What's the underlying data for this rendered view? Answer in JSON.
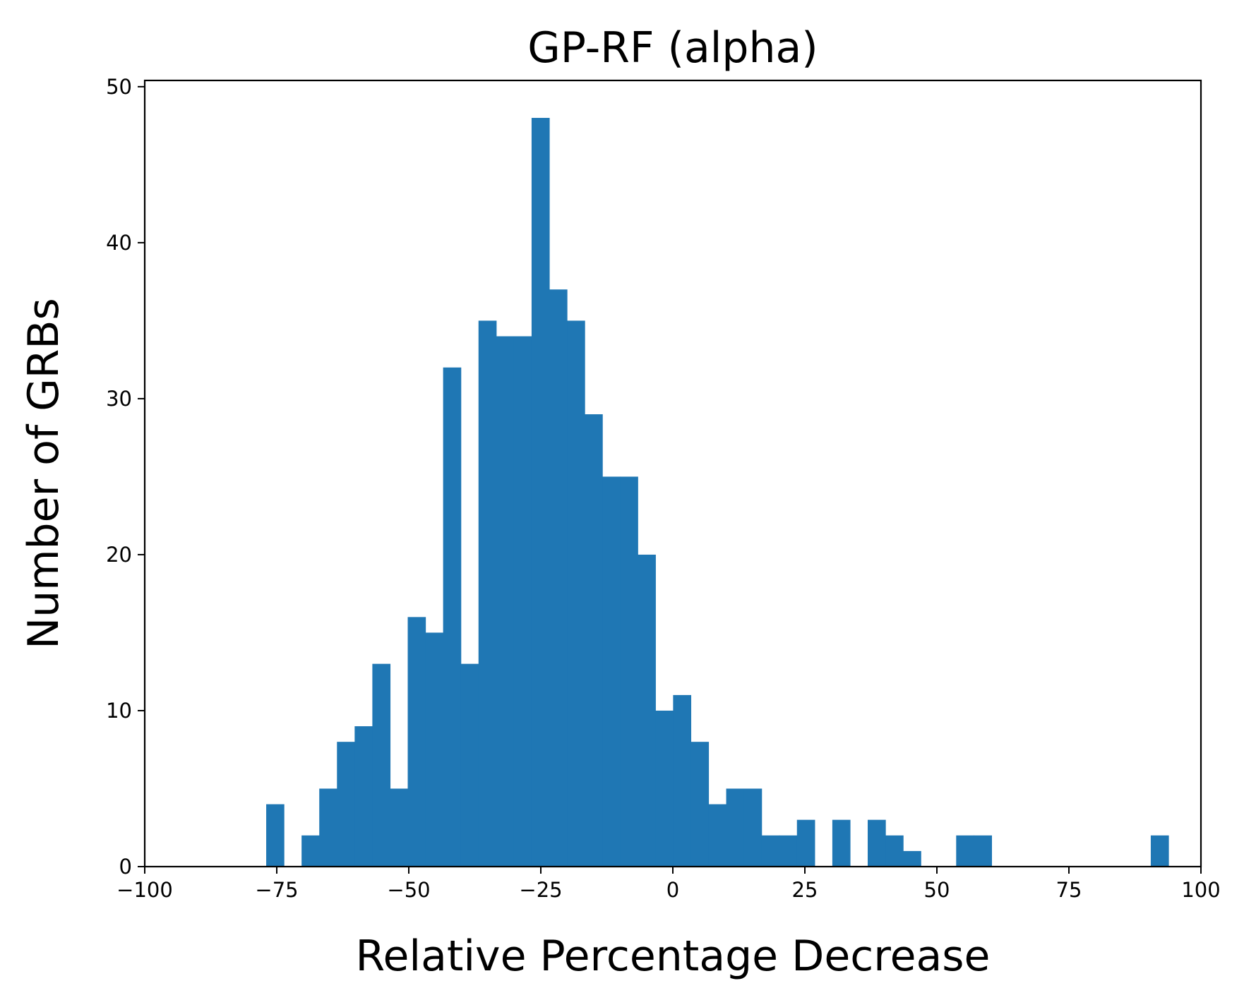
{
  "chart_data": {
    "type": "bar",
    "title": "GP-RF (alpha)",
    "xlabel": "Relative Percentage Decrease",
    "ylabel": "Number of GRBs",
    "xlim": [
      -100,
      100
    ],
    "ylim": [
      0,
      50.4
    ],
    "xticks": [
      -100,
      -75,
      -50,
      -25,
      0,
      25,
      50,
      75,
      100
    ],
    "xtick_labels": [
      "−100",
      "−75",
      "−50",
      "−25",
      "0",
      "25",
      "50",
      "75",
      "100"
    ],
    "yticks": [
      0,
      10,
      20,
      30,
      40,
      50
    ],
    "ytick_labels": [
      "0",
      "10",
      "20",
      "30",
      "40",
      "50"
    ],
    "grid": false,
    "bar_color": "#1f77b4",
    "bins": {
      "start": -77.0,
      "width": 3.35,
      "values": [
        4,
        0,
        2,
        5,
        8,
        9,
        13,
        5,
        16,
        15,
        32,
        13,
        35,
        34,
        34,
        48,
        37,
        35,
        29,
        25,
        25,
        20,
        10,
        11,
        8,
        4,
        5,
        5,
        2,
        2,
        3,
        0,
        3,
        0,
        3,
        2,
        1,
        0,
        0,
        2,
        2,
        0,
        0,
        0,
        0,
        0,
        0,
        0,
        0,
        0,
        2
      ]
    }
  }
}
